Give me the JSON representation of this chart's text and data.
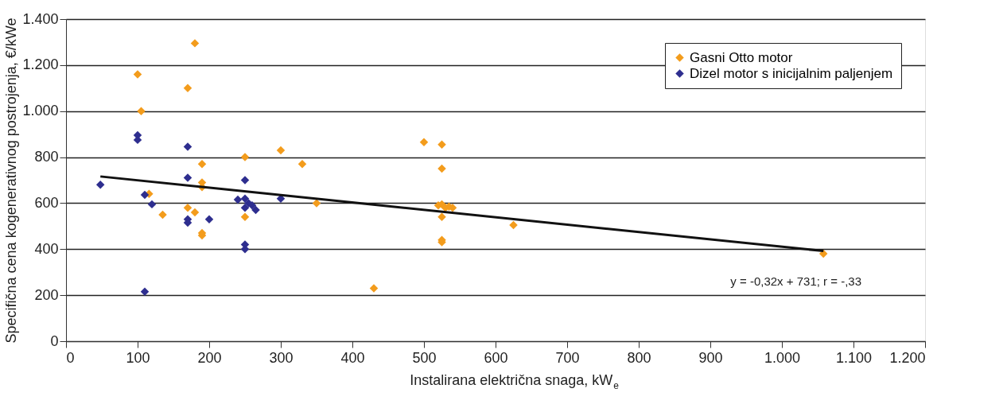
{
  "chart_data": {
    "type": "scatter",
    "xlabel": "Instalirana električna snaga, kW$_{e}$",
    "ylabel": "Specifična cena kogenerativnog postrojenja, €/kWe",
    "xlim": [
      0,
      1200
    ],
    "ylim": [
      0,
      1400
    ],
    "xticks": [
      0,
      100,
      200,
      300,
      400,
      500,
      600,
      700,
      800,
      900,
      {
        "value": 1000,
        "label": "1.000"
      },
      {
        "value": 1100,
        "label": "1.100"
      },
      {
        "value": 1200,
        "label": "1.200"
      }
    ],
    "yticks": [
      0,
      200,
      400,
      600,
      800,
      {
        "value": 1000,
        "label": "1.000"
      },
      {
        "value": 1200,
        "label": "1.200"
      },
      {
        "value": 1400,
        "label": "1.400"
      }
    ],
    "grid": "y",
    "legend": "top right",
    "marker": "diamond",
    "series": [
      {
        "name": "Gasni Otto motor",
        "color": "#f39c1c",
        "x": [
          100,
          105,
          116,
          135,
          170,
          170,
          180,
          180,
          190,
          190,
          190,
          190,
          190,
          250,
          250,
          300,
          330,
          350,
          430,
          500,
          525,
          525,
          520,
          525,
          530,
          535,
          540,
          525,
          525,
          525,
          625,
          1058
        ],
        "values": [
          1160,
          1000,
          640,
          550,
          1100,
          580,
          560,
          1295,
          770,
          690,
          670,
          470,
          460,
          800,
          540,
          830,
          770,
          600,
          230,
          865,
          855,
          750,
          590,
          595,
          580,
          585,
          580,
          540,
          440,
          430,
          505,
          380
        ]
      },
      {
        "name": "Dizel motor s inicijalnim paljenjem",
        "color": "#2e2e8f",
        "x": [
          48,
          100,
          100,
          110,
          120,
          110,
          170,
          170,
          170,
          170,
          200,
          240,
          250,
          250,
          255,
          250,
          260,
          265,
          250,
          250,
          300
        ],
        "values": [
          680,
          895,
          875,
          636,
          595,
          215,
          845,
          710,
          530,
          515,
          530,
          615,
          700,
          620,
          600,
          580,
          590,
          570,
          420,
          400,
          620
        ]
      },
      {
        "type": "line",
        "marker": "none",
        "color": "#111111",
        "x": [
          48,
          1058
        ],
        "values": [
          716,
          392
        ]
      }
    ],
    "annotations": [
      "y = -0,32x + 731; r = -,33"
    ]
  }
}
